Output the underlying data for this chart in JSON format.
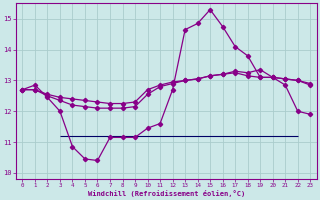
{
  "xlabel": "Windchill (Refroidissement éolien,°C)",
  "xlim": [
    -0.5,
    23.5
  ],
  "ylim": [
    9.8,
    15.5
  ],
  "yticks": [
    10,
    11,
    12,
    13,
    14,
    15
  ],
  "xticks": [
    0,
    1,
    2,
    3,
    4,
    5,
    6,
    7,
    8,
    9,
    10,
    11,
    12,
    13,
    14,
    15,
    16,
    17,
    18,
    19,
    20,
    21,
    22,
    23
  ],
  "background_color": "#cce8e8",
  "grid_color": "#aacccc",
  "line_color": "#880088",
  "line1_x": [
    0,
    1,
    2,
    3,
    4,
    5,
    6,
    7,
    8,
    9,
    10,
    11,
    12,
    13,
    14,
    15,
    16,
    17,
    18,
    19,
    20,
    21,
    22,
    23
  ],
  "line1_y": [
    12.7,
    12.85,
    12.45,
    12.0,
    10.85,
    10.45,
    10.4,
    11.15,
    11.15,
    11.15,
    11.45,
    11.6,
    12.7,
    14.65,
    14.85,
    15.3,
    14.75,
    14.1,
    13.8,
    13.1,
    13.1,
    12.85,
    12.0,
    11.9
  ],
  "line2_x": [
    0,
    1,
    2,
    3,
    4,
    5,
    6,
    7,
    8,
    9,
    10,
    11,
    12,
    13,
    14,
    15,
    16,
    17,
    18,
    19,
    20,
    21,
    22,
    23
  ],
  "line2_y": [
    12.7,
    12.7,
    12.55,
    12.45,
    12.4,
    12.35,
    12.3,
    12.25,
    12.25,
    12.3,
    12.7,
    12.85,
    12.95,
    13.0,
    13.05,
    13.15,
    13.2,
    13.25,
    13.15,
    13.1,
    13.1,
    13.05,
    13.0,
    12.85
  ],
  "line3_x": [
    0,
    1,
    2,
    3,
    4,
    5,
    6,
    7,
    8,
    9,
    10,
    11,
    12,
    13,
    14,
    15,
    16,
    17,
    18,
    19,
    20,
    21,
    22,
    23
  ],
  "line3_y": [
    12.7,
    12.7,
    12.5,
    12.35,
    12.2,
    12.15,
    12.1,
    12.1,
    12.1,
    12.15,
    12.55,
    12.8,
    12.9,
    13.0,
    13.05,
    13.15,
    13.2,
    13.3,
    13.25,
    13.35,
    13.1,
    13.05,
    13.0,
    12.9
  ],
  "hline_y": 11.2,
  "hline_x_start": 3,
  "hline_x_end": 22
}
